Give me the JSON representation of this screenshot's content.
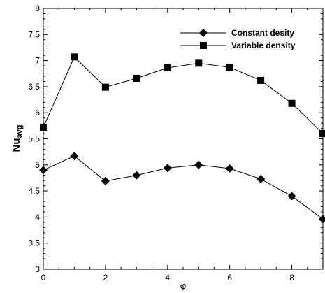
{
  "chart_data": {
    "type": "line",
    "xlabel": "φ",
    "ylabel": "Nu",
    "ylabel_sub": "avg",
    "xlim": [
      0,
      9
    ],
    "ylim": [
      3,
      8
    ],
    "x_ticks": [
      "0",
      "2",
      "4",
      "6",
      "8"
    ],
    "x_tick_values": [
      0,
      2,
      4,
      6,
      8
    ],
    "y_ticks": [
      "3",
      "3.5",
      "4",
      "4.5",
      "5",
      "5.5",
      "6",
      "6.5",
      "7",
      "7.5",
      "8"
    ],
    "y_tick_values": [
      3,
      3.5,
      4,
      4.5,
      5,
      5.5,
      6,
      6.5,
      7,
      7.5,
      8
    ],
    "grid": false,
    "legend_position": "top-right",
    "series": [
      {
        "name": "Constant desity",
        "marker": "diamond",
        "color": "#000000",
        "x": [
          0,
          1,
          2,
          3,
          4,
          5,
          6,
          7,
          8,
          9
        ],
        "values": [
          4.9,
          5.17,
          4.69,
          4.8,
          4.94,
          5.0,
          4.93,
          4.73,
          4.4,
          3.96
        ]
      },
      {
        "name": "Variable density",
        "marker": "square",
        "color": "#000000",
        "x": [
          0,
          1,
          2,
          3,
          4,
          5,
          6,
          7,
          8,
          9
        ],
        "values": [
          5.72,
          7.07,
          6.49,
          6.66,
          6.86,
          6.95,
          6.87,
          6.62,
          6.18,
          5.6
        ]
      }
    ]
  }
}
